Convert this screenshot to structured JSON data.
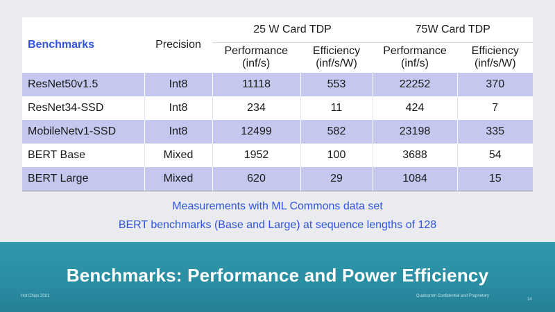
{
  "table": {
    "benchmarks_header": "Benchmarks",
    "precision_header": "Precision",
    "group_25w": "25 W Card TDP",
    "group_75w": "75W Card TDP",
    "sub_headers": {
      "perf_25": [
        "Performance",
        "(inf/s)"
      ],
      "eff_25": [
        "Efficiency",
        "(inf/s/W)"
      ],
      "perf_75": [
        "Performance",
        "(inf/s)"
      ],
      "eff_75": [
        "Efficiency",
        "(inf/s/W)"
      ]
    },
    "rows": [
      {
        "name": "ResNet50v1.5",
        "precision": "Int8",
        "perf25": "11118",
        "eff25": "553",
        "perf75": "22252",
        "eff75": "370"
      },
      {
        "name": "ResNet34-SSD",
        "precision": "Int8",
        "perf25": "234",
        "eff25": "11",
        "perf75": "424",
        "eff75": "7"
      },
      {
        "name": "MobileNetv1-SSD",
        "precision": "Int8",
        "perf25": "12499",
        "eff25": "582",
        "perf75": "23198",
        "eff75": "335"
      },
      {
        "name": "BERT Base",
        "precision": "Mixed",
        "perf25": "1952",
        "eff25": "100",
        "perf75": "3688",
        "eff75": "54"
      },
      {
        "name": "BERT Large",
        "precision": "Mixed",
        "perf25": "620",
        "eff25": "29",
        "perf75": "1084",
        "eff75": "15"
      }
    ]
  },
  "notes": {
    "line1": "Measurements with ML Commons data set",
    "line2": "BERT benchmarks (Base and Large) at sequence lengths of 128"
  },
  "slide_title": "Benchmarks: Performance and Power Efficiency",
  "footer": {
    "left": "Hot Chips 2021",
    "right": "Qualcomm Confidential and Proprietary",
    "page": "14"
  },
  "colors": {
    "accent_blue": "#3253dc",
    "row_shade": "#c5c8ee",
    "band_teal": "#2a8da2"
  }
}
